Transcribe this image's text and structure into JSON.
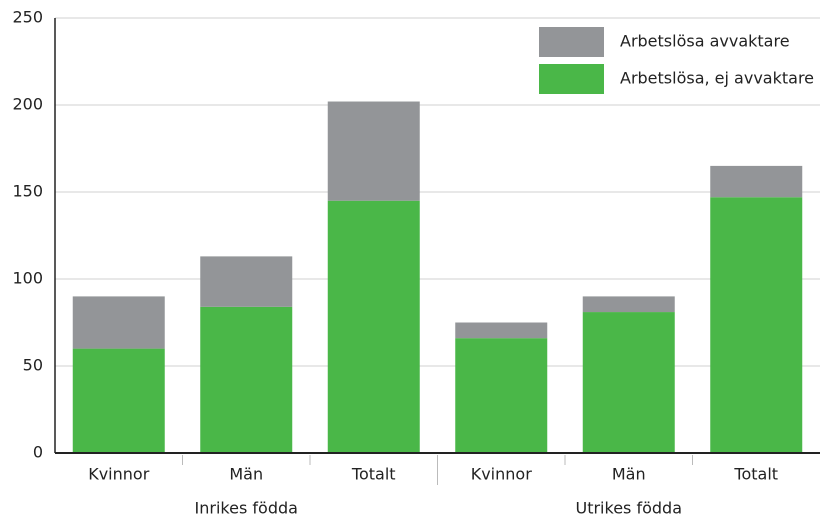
{
  "chart_data": {
    "type": "stacked-bar",
    "categories": [
      "Kvinnor",
      "Män",
      "Totalt",
      "Kvinnor",
      "Män",
      "Totalt"
    ],
    "groups": [
      "Inrikes födda",
      "Utrikes födda"
    ],
    "series": [
      {
        "name": "Arbetslösa, ej avvaktare",
        "color": "#4ab748",
        "values": [
          60,
          84,
          145,
          66,
          81,
          147
        ]
      },
      {
        "name": "Arbetslösa avvaktare",
        "color": "#939598",
        "values": [
          30,
          29,
          57,
          9,
          9,
          18
        ]
      }
    ],
    "ylim": [
      0,
      250
    ],
    "yticks": [
      0,
      50,
      100,
      150,
      200,
      250
    ],
    "grid": true
  }
}
